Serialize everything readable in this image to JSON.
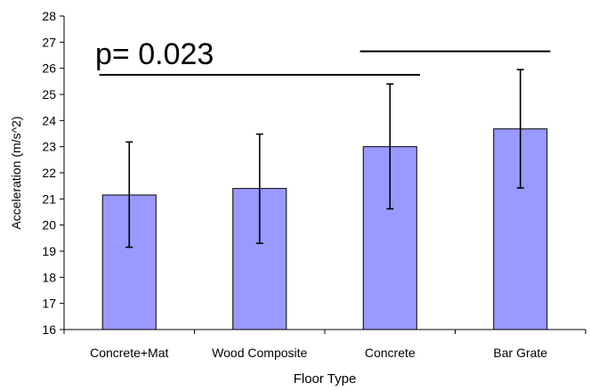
{
  "chart_data": {
    "type": "bar",
    "title": "",
    "xlabel": "Floor Type",
    "ylabel": "Acceleration (m/s^2)",
    "ylim": [
      16,
      28
    ],
    "yticks": [
      16,
      17,
      18,
      19,
      20,
      21,
      22,
      23,
      24,
      25,
      26,
      27,
      28
    ],
    "categories": [
      "Concrete+Mat",
      "Wood Composite",
      "Concrete",
      "Bar Grate"
    ],
    "series": [
      {
        "values": [
          21.15,
          21.4,
          23.0,
          23.68
        ],
        "error_low": [
          19.15,
          19.3,
          20.62,
          21.42
        ],
        "error_high": [
          23.18,
          23.48,
          25.4,
          25.95
        ],
        "color": "#9999ff"
      }
    ],
    "annotations": [
      {
        "text": "p= 0.023"
      }
    ],
    "significance_lines": [
      {
        "from_category": 0,
        "to_category": 2,
        "y": 25.75
      },
      {
        "from_category": 2,
        "to_category": 3,
        "y": 26.65
      }
    ],
    "grid": false,
    "legend": "none"
  }
}
